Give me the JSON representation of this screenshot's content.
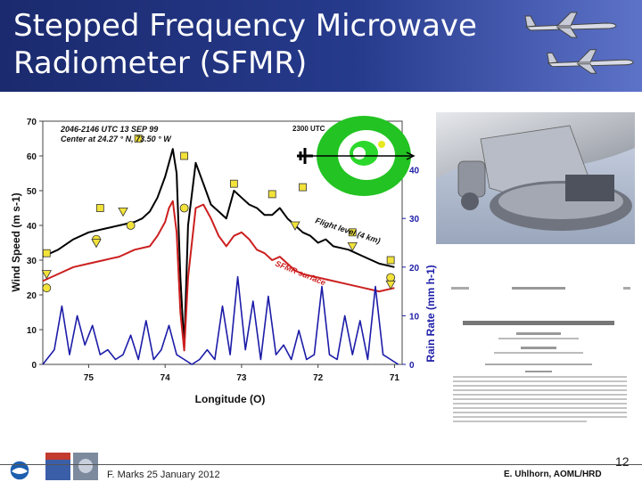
{
  "slide": {
    "title_line1": "Stepped Frequency Microwave",
    "title_line2": "Radiometer (SFMR)",
    "footer_left": "F. Marks 25 January 2012",
    "footer_right": "E. Uhlhorn, AOML/HRD",
    "page_number": "12"
  },
  "figure": {
    "annotation_line1": "2046-2146 UTC 13 SEP 99",
    "annotation_line2": "Center at 24.27 ° N, 73.50 ° W",
    "inset_label": "2300 UTC",
    "flight_level_label": "Flight level (4 km)",
    "sfmr_label": "SFMR surface"
  },
  "chart_data": {
    "type": "line",
    "xlabel": "Longitude (O)",
    "ylabel_left": "Wind Speed (m s-1)",
    "ylabel_right": "Rain Rate (mm h-1)",
    "x_ticks": [
      "75",
      "74",
      "73",
      "72",
      "71"
    ],
    "y_left_ticks": [
      "0",
      "10",
      "20",
      "30",
      "40",
      "50",
      "60",
      "70"
    ],
    "y_right_ticks": [
      "0",
      "10",
      "20",
      "30",
      "40"
    ],
    "xlim": [
      75.6,
      70.9
    ],
    "ylim_left": [
      0,
      70
    ],
    "ylim_right": [
      0,
      40
    ],
    "series": [
      {
        "name": "Flight level (4 km)",
        "color": "#000000",
        "axis": "left",
        "x": [
          75.6,
          75.4,
          75.2,
          75.0,
          74.8,
          74.6,
          74.4,
          74.3,
          74.2,
          74.1,
          74.0,
          73.95,
          73.9,
          73.85,
          73.8,
          73.75,
          73.7,
          73.6,
          73.5,
          73.4,
          73.3,
          73.2,
          73.1,
          73.0,
          72.9,
          72.8,
          72.7,
          72.6,
          72.5,
          72.4,
          72.3,
          72.2,
          72.1,
          72.0,
          71.9,
          71.8,
          71.6,
          71.4,
          71.2,
          71.0
        ],
        "y": [
          31,
          33,
          36,
          38,
          39,
          40,
          41,
          42,
          44,
          48,
          54,
          58,
          62,
          55,
          25,
          5,
          40,
          58,
          52,
          46,
          44,
          42,
          50,
          48,
          46,
          45,
          43,
          43,
          45,
          42,
          40,
          38,
          37,
          35,
          36,
          34,
          33,
          31,
          29,
          28
        ]
      },
      {
        "name": "SFMR surface",
        "color": "#cc1f1f",
        "axis": "left",
        "x": [
          75.6,
          75.4,
          75.2,
          75.0,
          74.8,
          74.6,
          74.4,
          74.2,
          74.1,
          74.0,
          73.95,
          73.9,
          73.85,
          73.8,
          73.75,
          73.7,
          73.6,
          73.5,
          73.4,
          73.3,
          73.2,
          73.1,
          73.0,
          72.9,
          72.8,
          72.7,
          72.6,
          72.5,
          72.4,
          72.3,
          72.2,
          72.0,
          71.8,
          71.6,
          71.4,
          71.2,
          71.0
        ],
        "y": [
          24,
          26,
          28,
          29,
          30,
          31,
          33,
          34,
          37,
          41,
          45,
          47,
          38,
          15,
          4,
          25,
          45,
          46,
          42,
          37,
          34,
          37,
          38,
          36,
          33,
          32,
          30,
          31,
          29,
          27,
          26,
          25,
          24,
          23,
          22,
          21,
          22
        ]
      },
      {
        "name": "Rain rate",
        "color": "#1c1ca8",
        "axis": "right",
        "x": [
          75.6,
          75.45,
          75.35,
          75.25,
          75.15,
          75.05,
          74.95,
          74.85,
          74.75,
          74.65,
          74.55,
          74.45,
          74.35,
          74.25,
          74.15,
          74.05,
          73.95,
          73.85,
          73.75,
          73.65,
          73.55,
          73.45,
          73.35,
          73.25,
          73.15,
          73.05,
          72.95,
          72.85,
          72.75,
          72.65,
          72.55,
          72.45,
          72.35,
          72.25,
          72.15,
          72.05,
          71.95,
          71.85,
          71.75,
          71.65,
          71.55,
          71.45,
          71.35,
          71.25,
          71.15,
          71.05,
          70.95
        ],
        "y": [
          0,
          3,
          12,
          2,
          10,
          4,
          8,
          2,
          3,
          1,
          2,
          6,
          1,
          9,
          1,
          3,
          8,
          2,
          1,
          0,
          1,
          3,
          1,
          12,
          2,
          18,
          3,
          13,
          1,
          14,
          2,
          4,
          1,
          7,
          1,
          2,
          16,
          2,
          1,
          10,
          2,
          9,
          1,
          16,
          2,
          1,
          0
        ]
      }
    ],
    "markers_square": {
      "x": [
        75.55,
        74.85,
        74.35,
        73.75,
        73.1,
        72.6,
        72.2,
        71.55,
        71.05
      ],
      "y": [
        32,
        45,
        65,
        60,
        52,
        49,
        51,
        38,
        30
      ]
    },
    "markers_circle": {
      "x": [
        75.55,
        74.9,
        74.45,
        73.75,
        71.05
      ],
      "y": [
        22,
        36,
        40,
        45,
        25
      ]
    },
    "markers_triangle": {
      "x": [
        75.55,
        74.9,
        74.55,
        72.3,
        71.55,
        71.05
      ],
      "y": [
        26,
        35,
        44,
        40,
        34,
        23
      ]
    }
  },
  "icons": [
    "aircraft-icon",
    "noaa-logo-icon",
    "30-years-logo-icon"
  ]
}
